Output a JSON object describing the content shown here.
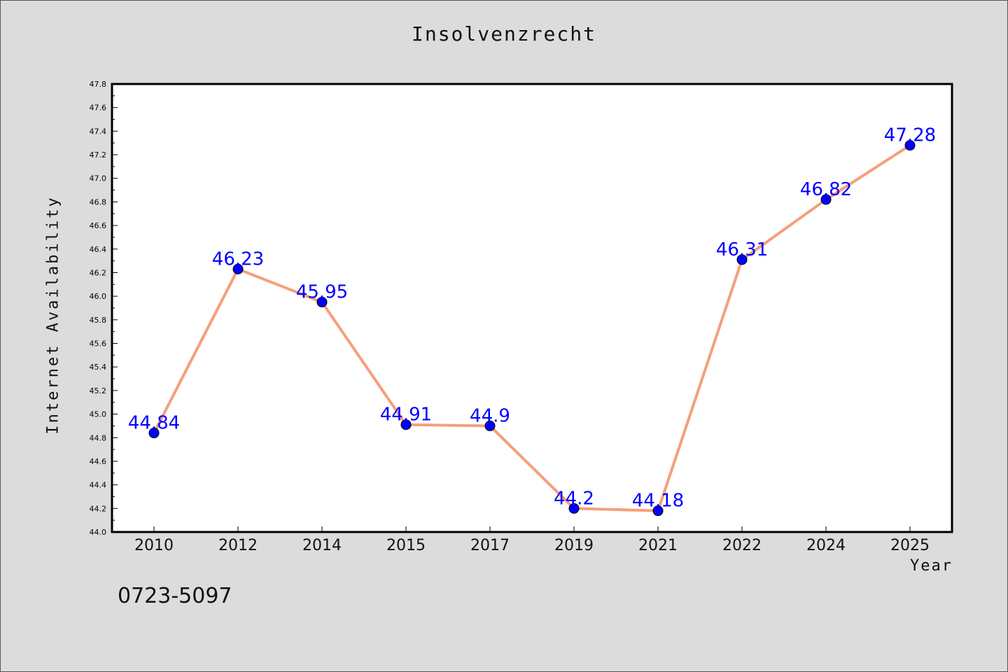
{
  "chart_data": {
    "type": "line",
    "title": "Insolvenzrecht",
    "xlabel": "Year",
    "ylabel": "Internet Availability",
    "categories": [
      "2010",
      "2012",
      "2014",
      "2015",
      "2017",
      "2019",
      "2021",
      "2022",
      "2024",
      "2025"
    ],
    "series": [
      {
        "values": [
          44.84,
          46.23,
          45.95,
          44.91,
          44.9,
          44.2,
          44.18,
          46.31,
          46.82,
          47.28
        ],
        "labels": [
          "44.84",
          "46.23",
          "45.95",
          "44.91",
          "44.9",
          "44.2",
          "44.18",
          "46.31",
          "46.82",
          "47.28"
        ]
      }
    ],
    "ylim": [
      44.0,
      47.8
    ],
    "yticks": [
      "44.0",
      "44.2",
      "44.4",
      "44.6",
      "44.8",
      "45.0",
      "45.2",
      "45.4",
      "45.6",
      "45.8",
      "46.0",
      "46.2",
      "46.4",
      "46.6",
      "46.8",
      "47.0",
      "47.2",
      "47.4",
      "47.6",
      "47.8"
    ],
    "grid": false,
    "line_color": "#f4a07a",
    "marker_color": "#0000ff",
    "label_color": "#0000ff"
  },
  "footnote": "0723-5097"
}
